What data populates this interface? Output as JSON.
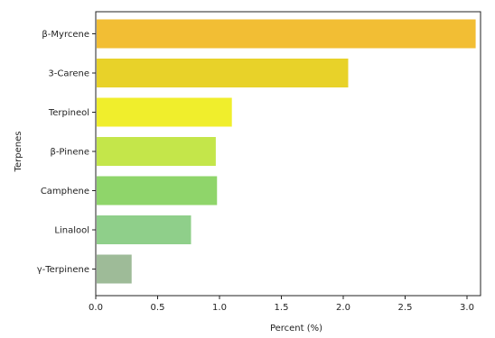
{
  "chart_data": {
    "type": "bar",
    "orientation": "horizontal",
    "categories": [
      "β-Myrcene",
      "3-Carene",
      "Terpineol",
      "β-Pinene",
      "Camphene",
      "Linalool",
      "γ-Terpinene"
    ],
    "values": [
      3.07,
      2.04,
      1.1,
      0.97,
      0.98,
      0.77,
      0.29
    ],
    "colors": [
      "#f2be34",
      "#e8d229",
      "#f0ee2c",
      "#c4e64a",
      "#8fd56a",
      "#8fcf8a",
      "#9ebb98"
    ],
    "xlabel": "Percent (%)",
    "ylabel": "Terpenes",
    "xlim": [
      0,
      3.0
    ],
    "xticks": [
      0.0,
      0.5,
      1.0,
      1.5,
      2.0,
      2.5,
      3.0
    ],
    "xtick_labels": [
      "0.0",
      "0.5",
      "1.0",
      "1.5",
      "2.0",
      "2.5",
      "3.0"
    ],
    "grid": false,
    "legend": "none"
  }
}
